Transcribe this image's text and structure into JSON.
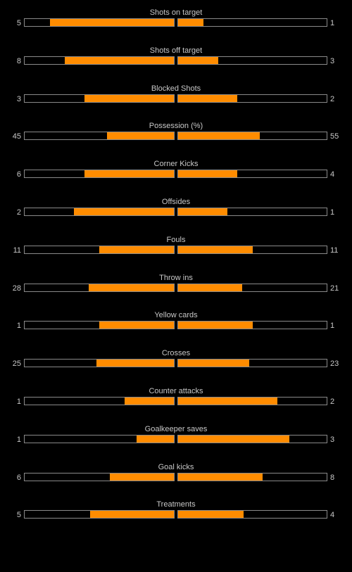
{
  "colors": {
    "background": "#000000",
    "bar_fill": "#ff8c00",
    "bar_border": "#8a8a8a",
    "text": "#c8c8c8"
  },
  "stats": [
    {
      "label": "Shots on target",
      "home": "5",
      "away": "1",
      "home_fill": 0.83,
      "away_fill": 0.17
    },
    {
      "label": "Shots off target",
      "home": "8",
      "away": "3",
      "home_fill": 0.73,
      "away_fill": 0.27
    },
    {
      "label": "Blocked Shots",
      "home": "3",
      "away": "2",
      "home_fill": 0.6,
      "away_fill": 0.4
    },
    {
      "label": "Possession (%)",
      "home": "45",
      "away": "55",
      "home_fill": 0.45,
      "away_fill": 0.55
    },
    {
      "label": "Corner Kicks",
      "home": "6",
      "away": "4",
      "home_fill": 0.6,
      "away_fill": 0.4
    },
    {
      "label": "Offsides",
      "home": "2",
      "away": "1",
      "home_fill": 0.67,
      "away_fill": 0.33
    },
    {
      "label": "Fouls",
      "home": "11",
      "away": "11",
      "home_fill": 0.5,
      "away_fill": 0.5
    },
    {
      "label": "Throw ins",
      "home": "28",
      "away": "21",
      "home_fill": 0.57,
      "away_fill": 0.43
    },
    {
      "label": "Yellow cards",
      "home": "1",
      "away": "1",
      "home_fill": 0.5,
      "away_fill": 0.5
    },
    {
      "label": "Crosses",
      "home": "25",
      "away": "23",
      "home_fill": 0.52,
      "away_fill": 0.48
    },
    {
      "label": "Counter attacks",
      "home": "1",
      "away": "2",
      "home_fill": 0.33,
      "away_fill": 0.67
    },
    {
      "label": "Goalkeeper saves",
      "home": "1",
      "away": "3",
      "home_fill": 0.25,
      "away_fill": 0.75
    },
    {
      "label": "Goal kicks",
      "home": "6",
      "away": "8",
      "home_fill": 0.43,
      "away_fill": 0.57
    },
    {
      "label": "Treatments",
      "home": "5",
      "away": "4",
      "home_fill": 0.56,
      "away_fill": 0.44
    }
  ]
}
